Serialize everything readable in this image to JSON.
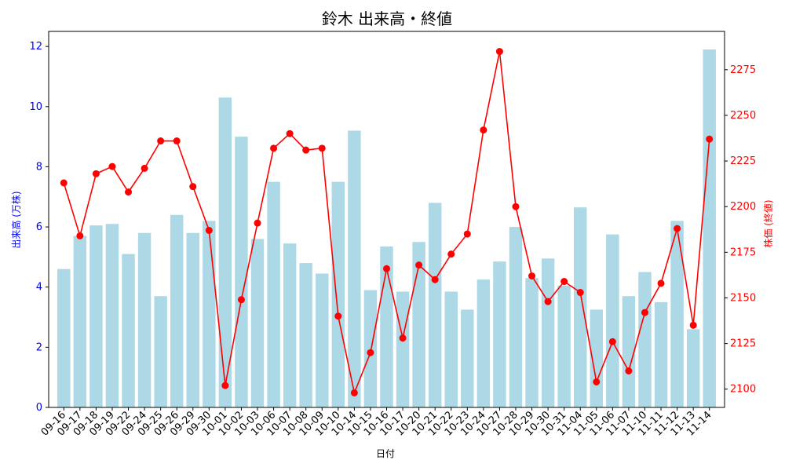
{
  "chart_data": {
    "type": "bar+line",
    "title": "鈴木 出来高・終値",
    "xlabel": "日付",
    "ylabel_left": "出来高 (万株)",
    "ylabel_right": "株価 (終値)",
    "categories": [
      "09-16",
      "09-17",
      "09-18",
      "09-19",
      "09-22",
      "09-24",
      "09-25",
      "09-26",
      "09-29",
      "09-30",
      "10-01",
      "10-02",
      "10-03",
      "10-06",
      "10-07",
      "10-08",
      "10-09",
      "10-10",
      "10-14",
      "10-15",
      "10-16",
      "10-17",
      "10-20",
      "10-21",
      "10-22",
      "10-23",
      "10-24",
      "10-27",
      "10-28",
      "10-29",
      "10-30",
      "10-31",
      "11-04",
      "11-05",
      "11-06",
      "11-07",
      "11-10",
      "11-11",
      "11-12",
      "11-13",
      "11-14"
    ],
    "volume": [
      4.6,
      5.7,
      6.05,
      6.1,
      5.1,
      5.8,
      3.7,
      6.4,
      5.8,
      6.2,
      10.3,
      9.0,
      5.6,
      7.5,
      5.45,
      4.8,
      4.45,
      7.5,
      9.2,
      3.9,
      5.35,
      3.85,
      5.5,
      6.8,
      3.85,
      3.25,
      4.25,
      4.85,
      6.0,
      4.3,
      4.95,
      4.05,
      6.65,
      3.25,
      5.75,
      3.7,
      4.5,
      3.5,
      6.2,
      2.6,
      11.9
    ],
    "close": [
      2213,
      2184,
      2218,
      2222,
      2208,
      2221,
      2236,
      2236,
      2211,
      2187,
      2102,
      2149,
      2191,
      2232,
      2240,
      2231,
      2232,
      2140,
      2098,
      2120,
      2166,
      2128,
      2168,
      2160,
      2174,
      2185,
      2242,
      2285,
      2200,
      2162,
      2148,
      2159,
      2153,
      2104,
      2126,
      2110,
      2142,
      2158,
      2188,
      2135,
      2237
    ],
    "y_left_ticks": [
      0,
      2,
      4,
      6,
      8,
      10,
      12
    ],
    "y_right_ticks": [
      2100,
      2125,
      2150,
      2175,
      2200,
      2225,
      2250,
      2275
    ],
    "y_left_range": [
      0,
      12.5
    ],
    "y_right_range": [
      2090,
      2296
    ],
    "colors": {
      "bar": "#add8e6",
      "line": "#ff0000",
      "left_axis": "#0000ff",
      "right_axis": "#ff0000",
      "text": "#000000"
    }
  }
}
